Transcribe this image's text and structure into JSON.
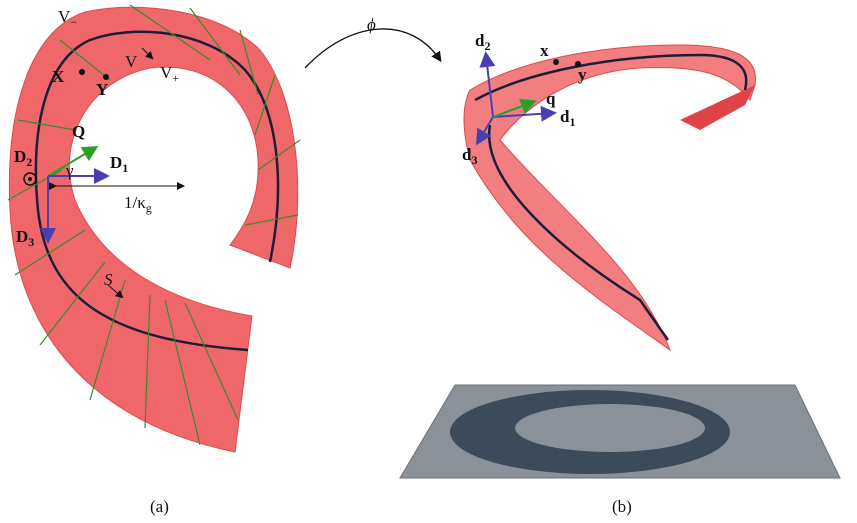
{
  "panel_a": {
    "caption": "(a)",
    "labels": {
      "v_minus": {
        "text": "V",
        "sub": "−"
      },
      "v": {
        "text": "V"
      },
      "v_plus": {
        "text": "V",
        "sub": "+"
      },
      "x": {
        "text": "X"
      },
      "y": {
        "text": "Y"
      },
      "q": {
        "text": "Q"
      },
      "d2": {
        "text": "D",
        "sub": "2"
      },
      "d1": {
        "text": "D",
        "sub": "1"
      },
      "gamma": {
        "text": "γ"
      },
      "kappa": {
        "text": "1/κ",
        "sub": "g"
      },
      "d3": {
        "text": "D",
        "sub": "3"
      },
      "s": {
        "text": "S"
      }
    }
  },
  "map": {
    "text": "ϕ"
  },
  "panel_b": {
    "caption": "(b)",
    "labels": {
      "d2": {
        "text": "d",
        "sub": "2"
      },
      "x": {
        "text": "x"
      },
      "y": {
        "text": "y"
      },
      "q": {
        "text": "q"
      },
      "d1": {
        "text": "d",
        "sub": "1"
      },
      "d3": {
        "text": "d",
        "sub": "3"
      }
    }
  }
}
